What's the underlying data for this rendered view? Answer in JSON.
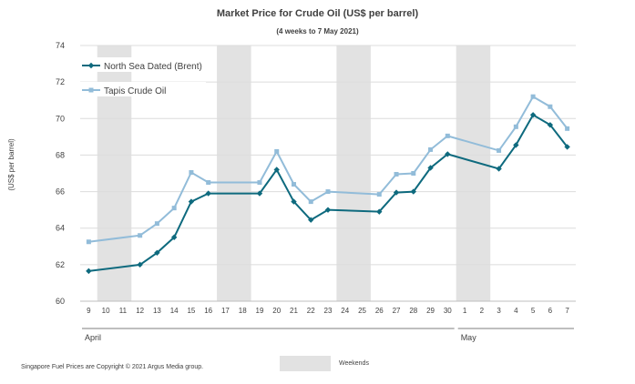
{
  "chart_data": {
    "type": "line",
    "title": "Market Price for Crude Oil  (US$  per barrel)",
    "subtitle": "(4 weeks to 7 May  2021)",
    "ylabel": "(US$ per barrel)",
    "xlabel": "",
    "ylim": [
      60,
      74
    ],
    "yticks": [
      60,
      62,
      64,
      66,
      68,
      70,
      72,
      74
    ],
    "x": [
      "9",
      "10",
      "11",
      "12",
      "13",
      "14",
      "15",
      "16",
      "17",
      "18",
      "19",
      "20",
      "21",
      "22",
      "23",
      "24",
      "25",
      "26",
      "27",
      "28",
      "29",
      "30",
      "1",
      "2",
      "3",
      "4",
      "5",
      "6",
      "7"
    ],
    "months": [
      {
        "label": "April",
        "start": 0,
        "end": 21
      },
      {
        "label": "May",
        "start": 22,
        "end": 28
      }
    ],
    "weekends": [
      [
        1,
        2
      ],
      [
        8,
        9
      ],
      [
        15,
        16
      ],
      [
        22,
        23
      ]
    ],
    "weekend_legend": "Weekends",
    "grid": true,
    "legend_position": "top-left",
    "series": [
      {
        "name": "North Sea Dated (Brent)",
        "color": "#0e6a7e",
        "marker": "diamond",
        "values": [
          61.65,
          null,
          null,
          62.0,
          62.65,
          63.5,
          65.45,
          65.9,
          null,
          null,
          65.9,
          67.2,
          65.45,
          64.45,
          65.0,
          null,
          null,
          64.9,
          65.95,
          66.0,
          67.3,
          68.05,
          null,
          null,
          67.25,
          68.55,
          70.2,
          69.65,
          68.45
        ]
      },
      {
        "name": "Tapis Crude Oil",
        "color": "#92bcd9",
        "marker": "square",
        "values": [
          63.25,
          null,
          null,
          63.6,
          64.25,
          65.1,
          67.05,
          66.5,
          null,
          null,
          66.5,
          68.2,
          66.4,
          65.45,
          66.0,
          null,
          null,
          65.85,
          66.95,
          67.0,
          68.3,
          69.05,
          null,
          null,
          68.25,
          69.55,
          71.2,
          70.65,
          69.45
        ]
      }
    ]
  },
  "footer": {
    "copyright": "Singapore  Fuel Prices are Copyright © 2021  Argus Media group."
  }
}
